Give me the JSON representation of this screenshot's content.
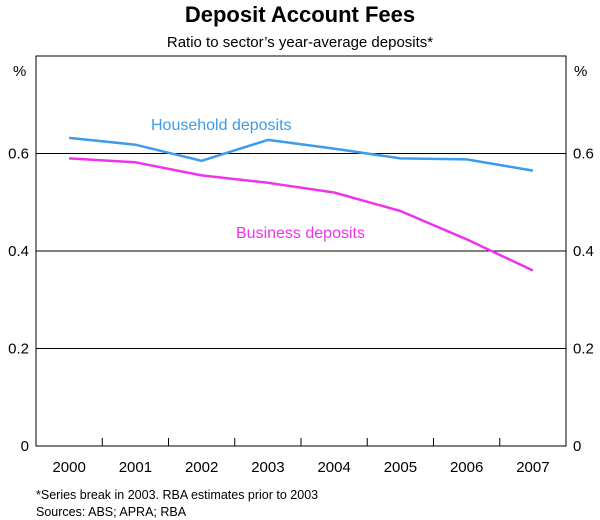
{
  "chart_data": {
    "type": "line",
    "title": "Deposit Account Fees",
    "subtitle": "Ratio to sector’s year-average deposits*",
    "y_unit_left": "%",
    "y_unit_right": "%",
    "categories": [
      "2000",
      "2001",
      "2002",
      "2003",
      "2004",
      "2005",
      "2006",
      "2007"
    ],
    "ylim": [
      0,
      0.8
    ],
    "yticks": [
      0,
      0.2,
      0.4,
      0.6
    ],
    "ytick_labels": [
      "0",
      "0.2",
      "0.4",
      "0.6"
    ],
    "grid": true,
    "series": [
      {
        "name": "Household deposits",
        "color": "#3d9be9",
        "values": [
          0.632,
          0.618,
          0.585,
          0.628,
          0.61,
          0.59,
          0.588,
          0.565
        ]
      },
      {
        "name": "Business deposits",
        "color": "#ee33ee",
        "values": [
          0.59,
          0.582,
          0.555,
          0.54,
          0.52,
          0.482,
          0.424,
          0.36
        ]
      }
    ],
    "footnotes": [
      "*Series break in 2003. RBA estimates prior to 2003",
      "Sources: ABS; APRA; RBA"
    ]
  }
}
